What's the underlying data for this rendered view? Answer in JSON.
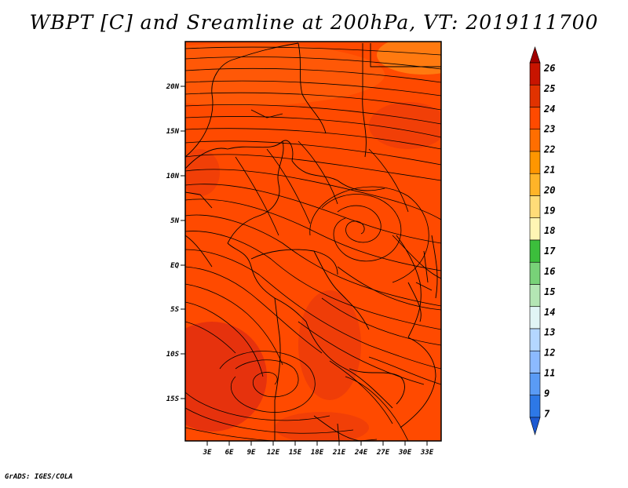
{
  "title": "WBPT [C] and Sreamline at 200hPa, VT: 2019111700",
  "credit": "GrADS: IGES/COLA",
  "map": {
    "fill_base": "#ff4a00",
    "fill_dark": "#e8300a",
    "fill_light": "#ff6a10",
    "y_axis": [
      "20N",
      "15N",
      "10N",
      "5N",
      "EQ",
      "5S",
      "10S",
      "15S"
    ],
    "x_axis": [
      "3E",
      "6E",
      "9E",
      "12E",
      "15E",
      "18E",
      "21E",
      "24E",
      "27E",
      "30E",
      "33E"
    ],
    "lon_range": [
      0,
      35
    ],
    "lat_range": [
      -20,
      25
    ]
  },
  "colorbar": {
    "labels": [
      "26",
      "25",
      "24",
      "23",
      "22",
      "21",
      "20",
      "19",
      "18",
      "17",
      "16",
      "15",
      "14",
      "13",
      "12",
      "11",
      "9",
      "7"
    ],
    "colors": [
      "#a00000",
      "#c81400",
      "#e13200",
      "#ff4a00",
      "#ff6e00",
      "#ff9600",
      "#ffb428",
      "#ffdc78",
      "#fff5b4",
      "#3cbe3c",
      "#78d278",
      "#b4e6b4",
      "#e1f5f5",
      "#b4d7ff",
      "#8cbaff",
      "#5a9bf5",
      "#2d78e6",
      "#1e5ad2"
    ]
  }
}
